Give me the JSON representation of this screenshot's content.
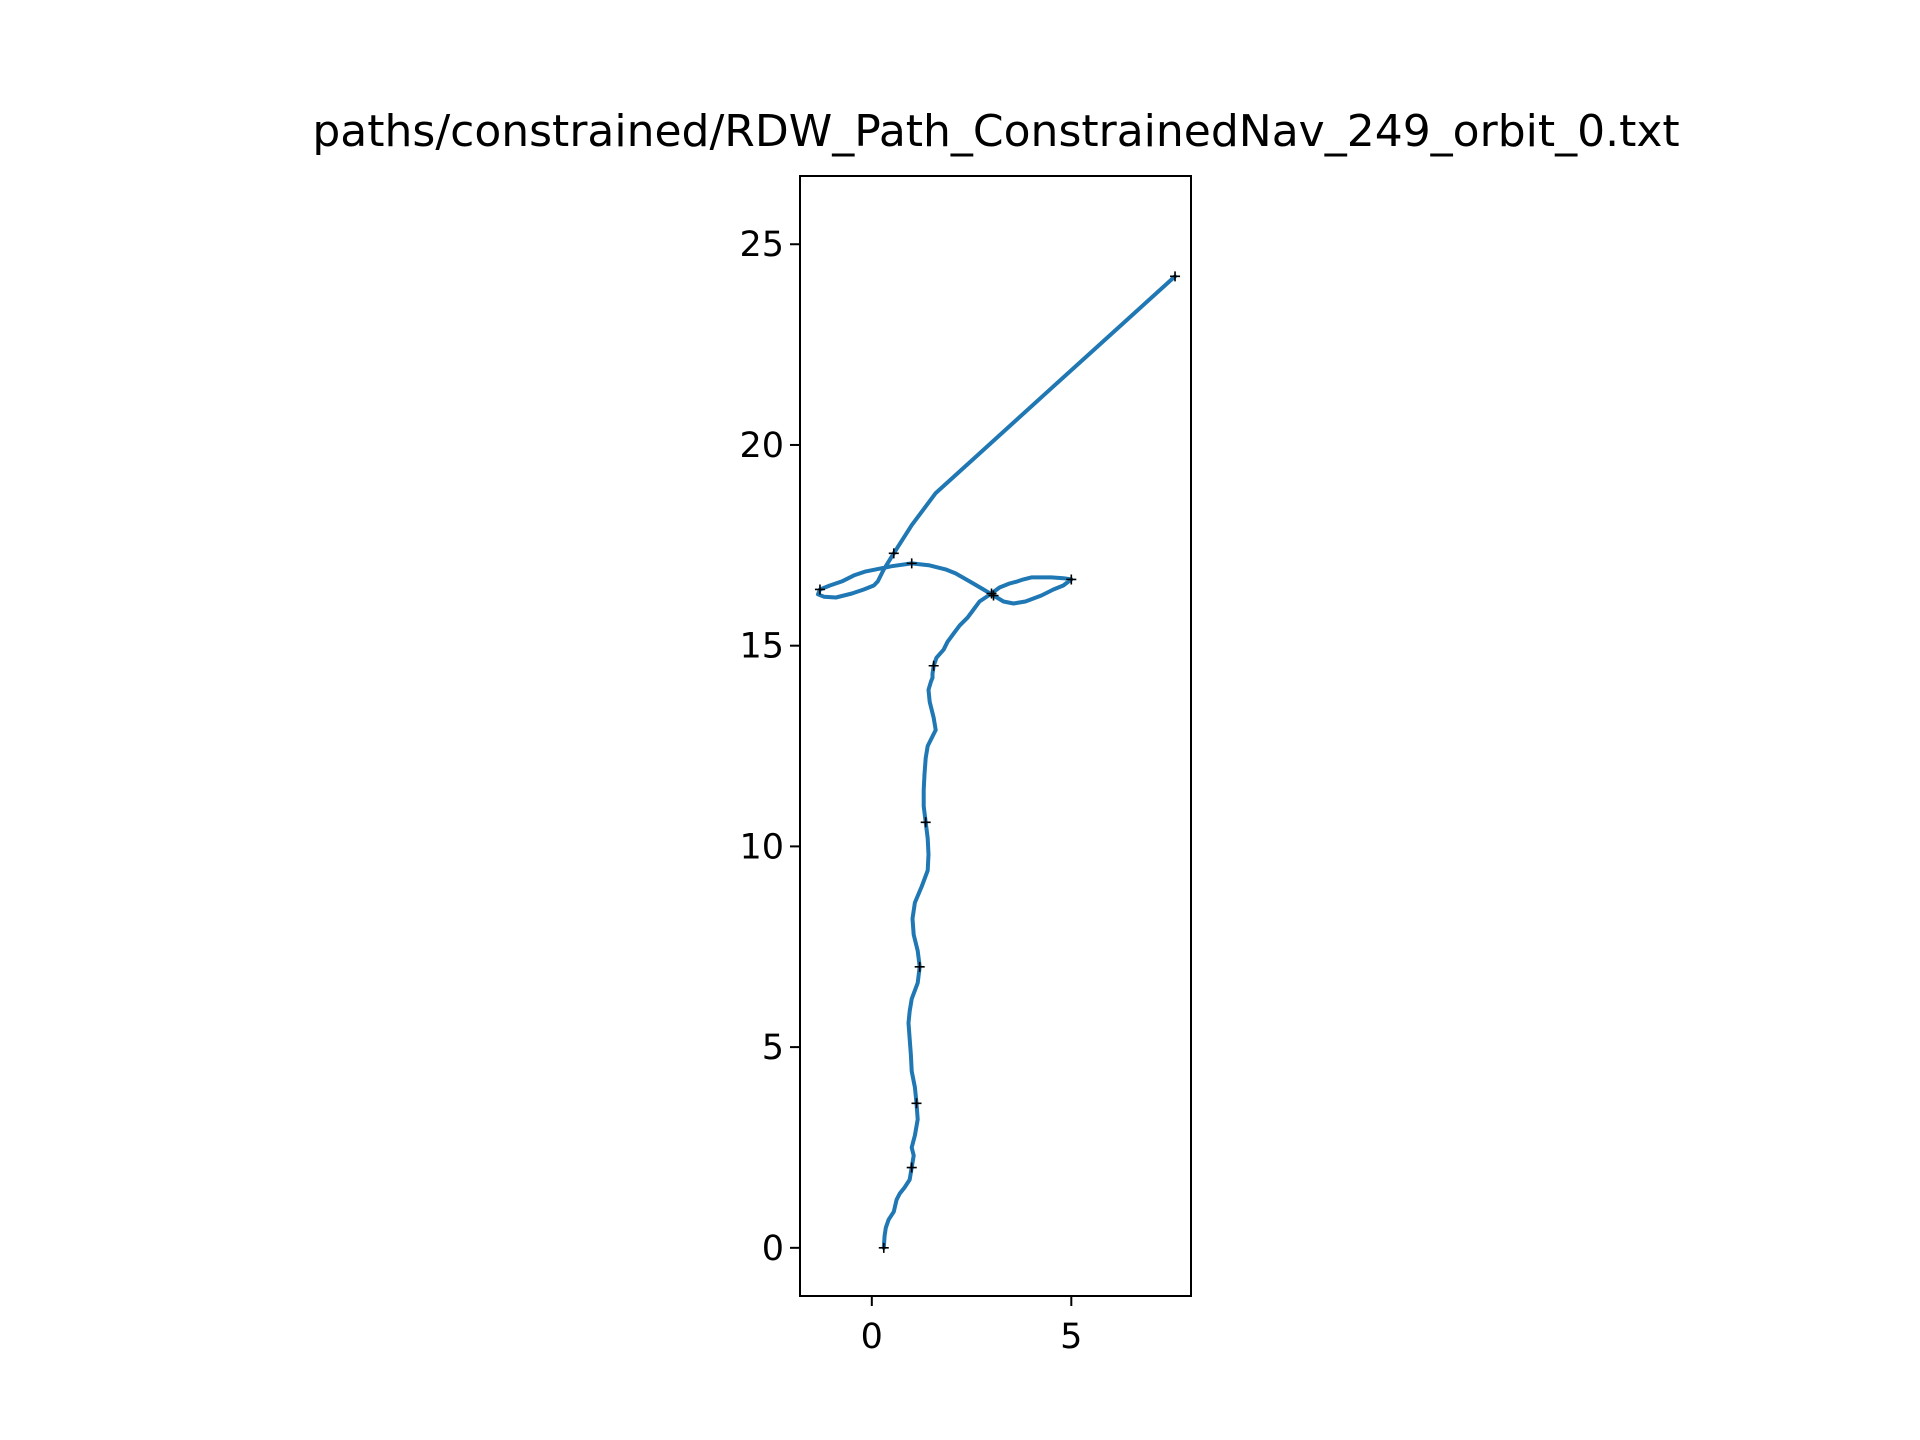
{
  "chart_data": {
    "type": "line",
    "title": "paths/constrained/RDW_Path_ConstrainedNav_249_orbit_0.txt",
    "xlabel": "",
    "ylabel": "",
    "xlim": [
      -1.8,
      8.0
    ],
    "ylim": [
      -1.2,
      26.7
    ],
    "x_ticks": [
      0,
      5
    ],
    "x_tick_labels": [
      "0",
      "5"
    ],
    "y_ticks": [
      0,
      5,
      10,
      15,
      20,
      25
    ],
    "y_tick_labels": [
      "0",
      "5",
      "10",
      "15",
      "20",
      "25"
    ],
    "grid": false,
    "legend": "none",
    "colors": {
      "line": "#1f77b4",
      "waypoint": "#000000",
      "axes": "#000000"
    },
    "series": [
      {
        "x": [
          0.3,
          0.32,
          0.35,
          0.42,
          0.55,
          0.62,
          0.7,
          0.82,
          0.95,
          1.0,
          1.05,
          1.0,
          1.08,
          1.15,
          1.12,
          1.08,
          1.0,
          0.98,
          0.95,
          0.92,
          0.95,
          1.0,
          1.15,
          1.2,
          1.15,
          1.05,
          1.02,
          1.08,
          1.25,
          1.4,
          1.42,
          1.4,
          1.35,
          1.3,
          1.3,
          1.32,
          1.35,
          1.4,
          1.5,
          1.6,
          1.55,
          1.45,
          1.42,
          1.48,
          1.52,
          1.52,
          1.55,
          1.62,
          1.8,
          1.9,
          2.05,
          2.2,
          2.4,
          2.55,
          2.7,
          3.0,
          3.2,
          3.45,
          3.65,
          3.8,
          4.0,
          4.2,
          4.5,
          4.8,
          5.0,
          4.8,
          4.55,
          4.25,
          3.85,
          3.55,
          3.3,
          3.05,
          2.8,
          2.45,
          2.1,
          1.85,
          1.45,
          1.0,
          0.5,
          0.1,
          -0.15,
          -0.45,
          -0.75,
          -1.05,
          -1.3,
          -1.35,
          -1.2,
          -0.9,
          -0.5,
          -0.2,
          0.05,
          0.15,
          0.3,
          0.55,
          1.0,
          1.6,
          2.6,
          3.6,
          4.6,
          5.6,
          6.6,
          7.6
        ],
        "y": [
          0.0,
          0.3,
          0.5,
          0.7,
          0.9,
          1.2,
          1.35,
          1.5,
          1.7,
          2.0,
          2.3,
          2.5,
          2.8,
          3.2,
          3.6,
          4.0,
          4.4,
          4.8,
          5.2,
          5.6,
          5.9,
          6.2,
          6.6,
          7.0,
          7.4,
          7.8,
          8.2,
          8.6,
          9.0,
          9.4,
          9.8,
          10.2,
          10.6,
          11.0,
          11.4,
          11.8,
          12.2,
          12.5,
          12.7,
          12.9,
          13.2,
          13.6,
          13.9,
          14.1,
          14.2,
          14.3,
          14.5,
          14.7,
          14.9,
          15.1,
          15.3,
          15.5,
          15.7,
          15.9,
          16.1,
          16.3,
          16.45,
          16.55,
          16.6,
          16.65,
          16.7,
          16.7,
          16.7,
          16.68,
          16.65,
          16.5,
          16.4,
          16.25,
          16.1,
          16.05,
          16.1,
          16.25,
          16.4,
          16.6,
          16.8,
          16.9,
          17.0,
          17.05,
          16.98,
          16.9,
          16.85,
          16.75,
          16.6,
          16.5,
          16.4,
          16.28,
          16.22,
          16.2,
          16.3,
          16.4,
          16.5,
          16.6,
          16.9,
          17.3,
          18.0,
          18.8,
          19.7,
          20.6,
          21.5,
          22.4,
          23.3,
          24.2
        ],
        "waypoint_indices": [
          0,
          9,
          14,
          23,
          32,
          46,
          55,
          64,
          71,
          77,
          84,
          93,
          101
        ]
      }
    ]
  }
}
